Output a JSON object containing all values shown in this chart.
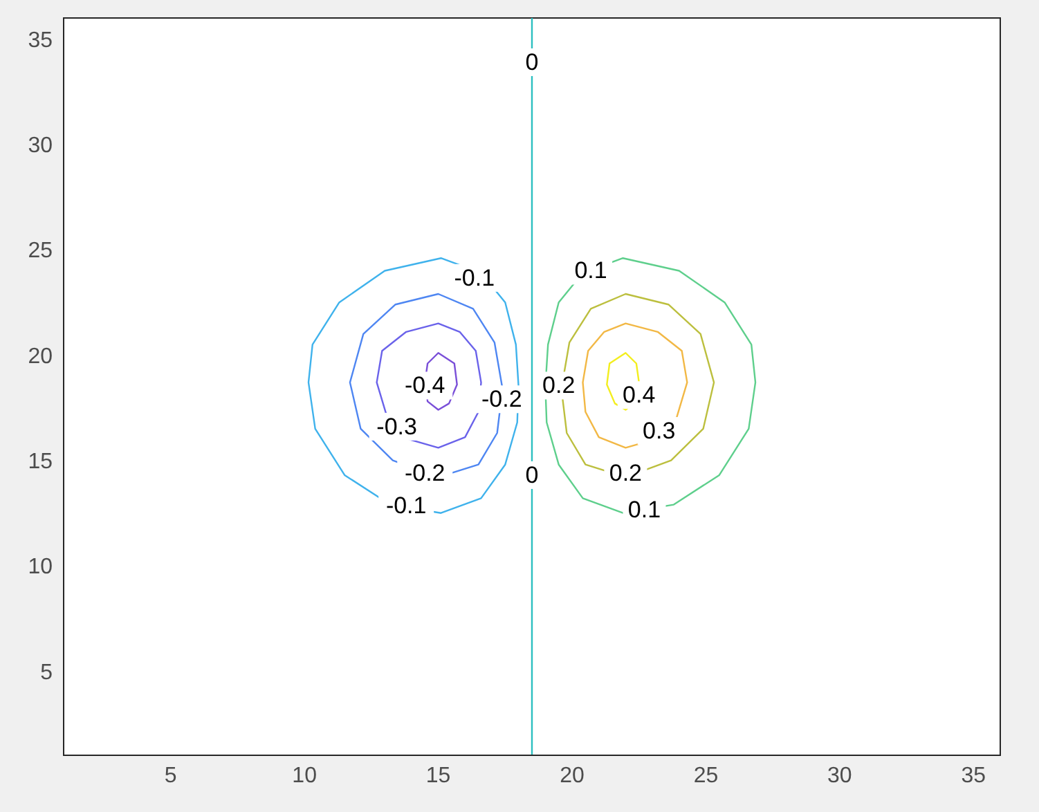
{
  "chart_data": {
    "type": "line",
    "xlim": [
      1,
      36
    ],
    "ylim": [
      1,
      36
    ],
    "xticks": [
      5,
      10,
      15,
      20,
      25,
      30,
      35
    ],
    "yticks": [
      5,
      10,
      15,
      20,
      25,
      30,
      35
    ],
    "marker": "none",
    "line_style": "solid",
    "series": [
      {
        "color": "#2cbfc0",
        "x": [
          18.5,
          18.5
        ],
        "values": [
          1,
          36
        ]
      }
    ],
    "annotations": [
      {
        "text": "-0.1",
        "x": 16.35,
        "y": 23.66
      },
      {
        "text": "-0.1",
        "x": 13.8,
        "y": 12.85
      },
      {
        "text": "-0.2",
        "x": 17.37,
        "y": 17.9
      },
      {
        "text": "-0.2",
        "x": 14.5,
        "y": 14.4
      },
      {
        "text": "-0.3",
        "x": 13.45,
        "y": 16.6
      },
      {
        "text": "-0.4",
        "x": 14.5,
        "y": 18.55
      },
      {
        "text": "0",
        "x": 18.5,
        "y": 33.9
      },
      {
        "text": "0",
        "x": 18.5,
        "y": 14.3
      },
      {
        "text": "0.1",
        "x": 20.7,
        "y": 24.0
      },
      {
        "text": "0.1",
        "x": 22.7,
        "y": 12.65
      },
      {
        "text": "0.2",
        "x": 19.5,
        "y": 18.55
      },
      {
        "text": "0.2",
        "x": 22.0,
        "y": 14.4
      },
      {
        "text": "0.3",
        "x": 23.25,
        "y": 16.4
      },
      {
        "text": "0.4",
        "x": 22.5,
        "y": 18.1
      }
    ]
  }
}
